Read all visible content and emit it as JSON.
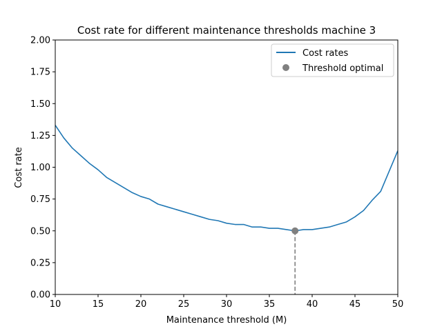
{
  "chart_data": {
    "type": "line",
    "title": "Cost rate for different maintenance thresholds machine 3",
    "xlabel": "Maintenance threshold (M)",
    "ylabel": "Cost rate",
    "xlim": [
      10,
      50
    ],
    "ylim": [
      0,
      2.0
    ],
    "xticks": [
      10,
      15,
      20,
      25,
      30,
      35,
      40,
      45,
      50
    ],
    "xtick_labels": [
      "10",
      "15",
      "20",
      "25",
      "30",
      "35",
      "40",
      "45",
      "50"
    ],
    "yticks": [
      0,
      0.25,
      0.5,
      0.75,
      1.0,
      1.25,
      1.5,
      1.75,
      2.0
    ],
    "ytick_labels": [
      "0.00",
      "0.25",
      "0.50",
      "0.75",
      "1.00",
      "1.25",
      "1.50",
      "1.75",
      "2.00"
    ],
    "grid": false,
    "legend_position": "top-right",
    "series": [
      {
        "name": "Cost rates",
        "color": "#1f77b4",
        "x": [
          10,
          11,
          12,
          13,
          14,
          15,
          16,
          17,
          18,
          19,
          20,
          21,
          22,
          23,
          24,
          25,
          26,
          27,
          28,
          29,
          30,
          31,
          32,
          33,
          34,
          35,
          36,
          37,
          38,
          39,
          40,
          41,
          42,
          43,
          44,
          45,
          46,
          47,
          48,
          49,
          50
        ],
        "y": [
          1.33,
          1.23,
          1.15,
          1.09,
          1.03,
          0.98,
          0.92,
          0.88,
          0.84,
          0.8,
          0.77,
          0.75,
          0.71,
          0.69,
          0.67,
          0.65,
          0.63,
          0.61,
          0.59,
          0.58,
          0.56,
          0.55,
          0.55,
          0.53,
          0.53,
          0.52,
          0.52,
          0.51,
          0.5,
          0.51,
          0.51,
          0.52,
          0.53,
          0.55,
          0.57,
          0.61,
          0.66,
          0.74,
          0.81,
          0.97,
          1.13
        ]
      }
    ],
    "optimal": {
      "name": "Threshold optimal",
      "color": "#808080",
      "x": 38,
      "y": 0.5
    }
  }
}
